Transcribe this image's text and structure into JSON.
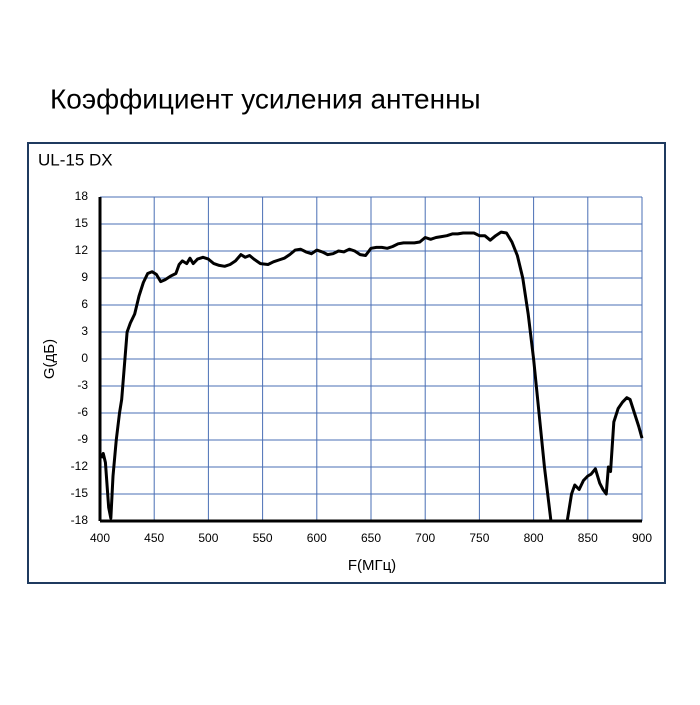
{
  "chart_data": {
    "type": "line",
    "title": "Коэффициент усиления антенны",
    "subtitle": "UL-15 DX",
    "x_label": "F(МГц)",
    "y_label": "G(дБ)",
    "xlim": [
      400,
      900
    ],
    "xticks": [
      400,
      450,
      500,
      550,
      600,
      650,
      700,
      750,
      800,
      850,
      900
    ],
    "ylim": [
      -18,
      18
    ],
    "yticks": [
      -18,
      -15,
      -12,
      -9,
      -6,
      -3,
      0,
      3,
      6,
      9,
      12,
      15,
      18
    ],
    "grid": true,
    "series": [
      {
        "color": "#000000",
        "x": [
          401,
          403,
          405,
          408,
          410,
          412,
          415,
          418,
          420,
          423,
          425,
          428,
          432,
          436,
          440,
          444,
          448,
          452,
          456,
          460,
          465,
          470,
          473,
          476,
          480,
          483,
          486,
          490,
          495,
          500,
          505,
          510,
          515,
          520,
          525,
          530,
          534,
          538,
          542,
          548,
          555,
          560,
          565,
          570,
          575,
          580,
          585,
          590,
          595,
          600,
          605,
          610,
          615,
          620,
          625,
          630,
          635,
          640,
          645,
          650,
          655,
          660,
          665,
          670,
          675,
          680,
          685,
          690,
          695,
          700,
          705,
          710,
          715,
          720,
          725,
          730,
          735,
          740,
          745,
          750,
          755,
          760,
          765,
          770,
          775,
          780,
          785,
          790,
          795,
          800,
          805,
          810,
          814,
          816,
          null,
          831,
          835,
          838,
          842,
          846,
          850,
          853,
          857,
          861,
          864,
          867,
          869,
          871,
          874,
          878,
          882,
          886,
          889,
          893,
          897,
          900
        ],
        "values": [
          -11,
          -10.5,
          -11.5,
          -16.5,
          -17.7,
          -13,
          -9,
          -6,
          -4.5,
          0,
          3,
          4,
          5,
          7,
          8.5,
          9.5,
          9.7,
          9.4,
          8.6,
          8.8,
          9.2,
          9.5,
          10.5,
          10.9,
          10.6,
          11.2,
          10.6,
          11.1,
          11.3,
          11.1,
          10.6,
          10.4,
          10.3,
          10.5,
          10.9,
          11.6,
          11.3,
          11.5,
          11.1,
          10.6,
          10.5,
          10.8,
          11.0,
          11.2,
          11.6,
          12.1,
          12.2,
          11.9,
          11.7,
          12.1,
          11.9,
          11.6,
          11.7,
          12.0,
          11.9,
          12.2,
          12.0,
          11.6,
          11.5,
          12.3,
          12.4,
          12.4,
          12.3,
          12.5,
          12.8,
          12.9,
          12.9,
          12.9,
          13.0,
          13.5,
          13.3,
          13.5,
          13.6,
          13.7,
          13.9,
          13.9,
          14.0,
          14.0,
          14.0,
          13.7,
          13.7,
          13.2,
          13.7,
          14.1,
          14.0,
          13.0,
          11.5,
          9.0,
          5.0,
          0.0,
          -6,
          -12,
          -16,
          -18,
          null,
          -18,
          -15,
          -14,
          -14.5,
          -13.5,
          -13,
          -12.8,
          -12.2,
          -13.8,
          -14.5,
          -15,
          -12,
          -12.5,
          -7,
          -5.5,
          -4.8,
          -4.3,
          -4.5,
          -6,
          -7.5,
          -8.8
        ]
      }
    ]
  }
}
